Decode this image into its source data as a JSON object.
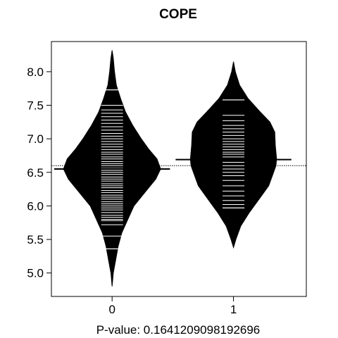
{
  "chart_data": {
    "type": "beanplot",
    "title": "COPE",
    "xlabel": "P-value: 0.1641209098192696",
    "ylim": [
      4.65,
      8.45
    ],
    "xlim": [
      0.5,
      2.6
    ],
    "yticks": [
      5.0,
      5.5,
      6.0,
      6.5,
      7.0,
      7.5,
      8.0
    ],
    "ytick_labels": [
      "5.0",
      "5.5",
      "6.0",
      "6.5",
      "7.0",
      "7.5",
      "8.0"
    ],
    "overall_mean": 6.6,
    "groups": [
      {
        "category": "0",
        "mean": 6.55,
        "density": [
          [
            4.8,
            0.0
          ],
          [
            5.0,
            0.01
          ],
          [
            5.2,
            0.03
          ],
          [
            5.4,
            0.05
          ],
          [
            5.6,
            0.08
          ],
          [
            5.8,
            0.13
          ],
          [
            6.0,
            0.18
          ],
          [
            6.2,
            0.27
          ],
          [
            6.4,
            0.36
          ],
          [
            6.55,
            0.4
          ],
          [
            6.7,
            0.37
          ],
          [
            6.85,
            0.3
          ],
          [
            7.0,
            0.24
          ],
          [
            7.2,
            0.17
          ],
          [
            7.4,
            0.11
          ],
          [
            7.6,
            0.07
          ],
          [
            7.8,
            0.035
          ],
          [
            8.0,
            0.02
          ],
          [
            8.2,
            0.01
          ],
          [
            8.32,
            0.0
          ]
        ],
        "values": [
          5.36,
          5.55,
          5.72,
          5.78,
          5.8,
          5.83,
          5.86,
          5.9,
          5.94,
          5.97,
          6.0,
          6.03,
          6.06,
          6.1,
          6.13,
          6.16,
          6.2,
          6.23,
          6.27,
          6.3,
          6.33,
          6.37,
          6.4,
          6.43,
          6.47,
          6.5,
          6.53,
          6.56,
          6.6,
          6.63,
          6.66,
          6.7,
          6.73,
          6.77,
          6.8,
          6.84,
          6.88,
          6.92,
          6.96,
          7.0,
          7.04,
          7.08,
          7.13,
          7.18,
          7.23,
          7.28,
          7.33,
          7.38,
          7.43,
          7.5,
          7.73
        ]
      },
      {
        "category": "1",
        "mean": 6.69,
        "density": [
          [
            5.38,
            0.0
          ],
          [
            5.5,
            0.02
          ],
          [
            5.7,
            0.06
          ],
          [
            5.9,
            0.13
          ],
          [
            6.1,
            0.21
          ],
          [
            6.3,
            0.29
          ],
          [
            6.5,
            0.33
          ],
          [
            6.6,
            0.35
          ],
          [
            6.7,
            0.355
          ],
          [
            6.9,
            0.345
          ],
          [
            7.1,
            0.34
          ],
          [
            7.25,
            0.3
          ],
          [
            7.4,
            0.22
          ],
          [
            7.6,
            0.12
          ],
          [
            7.8,
            0.05
          ],
          [
            8.0,
            0.015
          ],
          [
            8.15,
            0.0
          ]
        ],
        "values": [
          5.97,
          6.02,
          6.08,
          6.15,
          6.22,
          6.3,
          6.38,
          6.45,
          6.5,
          6.55,
          6.6,
          6.65,
          6.69,
          6.73,
          6.77,
          6.8,
          6.84,
          6.88,
          6.92,
          6.96,
          7.0,
          7.05,
          7.1,
          7.15,
          7.2,
          7.27,
          7.35,
          7.58
        ]
      }
    ]
  }
}
